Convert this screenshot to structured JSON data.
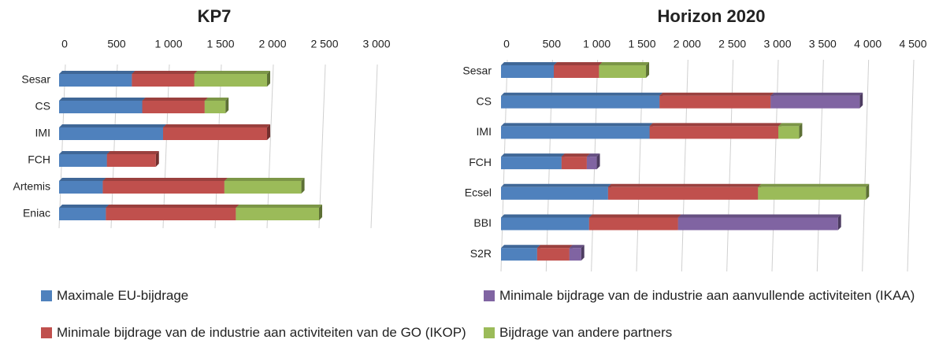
{
  "chart_data": [
    {
      "type": "bar",
      "title": "KP7",
      "categories": [
        "Sesar",
        "CS",
        "IMI",
        "FCH",
        "Artemis",
        "Eniac"
      ],
      "series": [
        {
          "name": "Maximale EU-bijdrage",
          "color": "#4f81bd",
          "values": [
            700,
            800,
            1000,
            460,
            420,
            450
          ]
        },
        {
          "name": "Minimale bijdrage van de industrie aan activiteiten van de GO (IKOP)",
          "color": "#c0504d",
          "values": [
            600,
            600,
            1000,
            470,
            1170,
            1250
          ]
        },
        {
          "name": "Bijdrage van andere partners",
          "color": "#9bbb59",
          "values": [
            700,
            200,
            null,
            null,
            740,
            800
          ]
        }
      ],
      "xlim": [
        0,
        3000
      ],
      "xticks": [
        0,
        500,
        {
          "value": 1000,
          "label": "1 000"
        },
        {
          "value": 1500,
          "label": "1 500"
        },
        {
          "value": 2000,
          "label": "2 000"
        },
        {
          "value": 2500,
          "label": "2 500"
        },
        {
          "value": 3000,
          "label": "3 000"
        }
      ],
      "grid": true
    },
    {
      "type": "bar",
      "title": "Horizon 2020",
      "categories": [
        "Sesar",
        "CS",
        "IMI",
        "FCH",
        "Ecsel",
        "BBI",
        "S2R"
      ],
      "series": [
        {
          "name": "Maximale EU-bijdrage",
          "color": "#4f81bd",
          "values": [
            585,
            1755,
            1645,
            670,
            1185,
            975,
            400
          ]
        },
        {
          "name": "Minimale bijdrage van de industrie aan activiteiten van de GO (IKOP)",
          "color": "#c0504d",
          "values": [
            500,
            1230,
            1425,
            280,
            1660,
            985,
            357
          ]
        },
        {
          "name": "Minimale bijdrage van de industrie aan aanvullende activiteiten (IKAA)",
          "color": "#8064a2",
          "values": [
            null,
            985,
            null,
            110,
            null,
            1770,
            130
          ]
        },
        {
          "name": "Bijdrage van andere partners",
          "color": "#9bbb59",
          "values": [
            520,
            null,
            230,
            null,
            1195,
            null,
            null
          ]
        }
      ],
      "xlim": [
        0,
        4500
      ],
      "xticks": [
        0,
        500,
        {
          "value": 1000,
          "label": "1 000"
        },
        {
          "value": 1500,
          "label": "1 500"
        },
        {
          "value": 2000,
          "label": "2 000"
        },
        {
          "value": 2500,
          "label": "2 500"
        },
        {
          "value": 3000,
          "label": "3 000"
        },
        {
          "value": 3500,
          "label": "3 500"
        },
        {
          "value": 4000,
          "label": "4 000"
        },
        {
          "value": 4500,
          "label": "4 500"
        }
      ],
      "grid": true
    }
  ]
}
